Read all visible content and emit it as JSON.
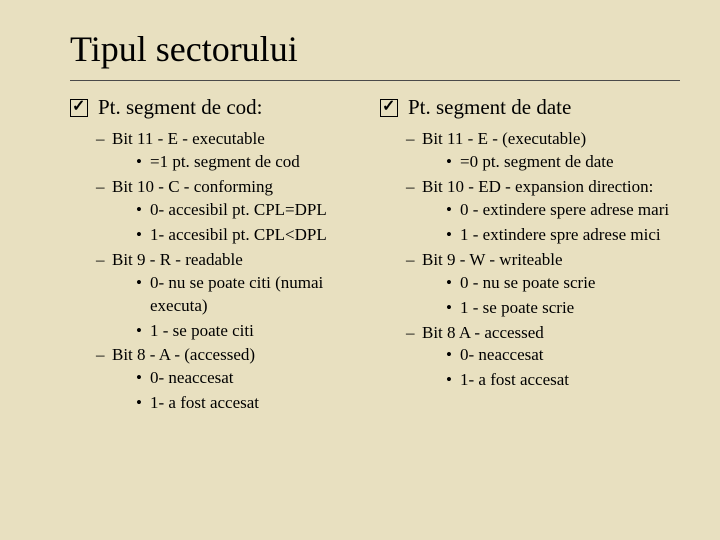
{
  "background_color": "#e8e0c0",
  "text_color": "#000000",
  "title": "Tipul sectorului",
  "title_fontsize": 36,
  "main_fontsize": 21,
  "sub_fontsize": 17,
  "rule_color": "#4a4a4a",
  "left": {
    "heading": "Pt. segment de cod:",
    "items": [
      {
        "label": "Bit 11 - E - executable",
        "children": [
          "=1 pt. segment de cod"
        ]
      },
      {
        "label": "Bit 10 - C - conforming",
        "children": [
          "0- accesibil pt. CPL=DPL",
          "1- accesibil pt. CPL<DPL"
        ]
      },
      {
        "label": "Bit 9 - R - readable",
        "children": [
          "0- nu se poate citi (numai executa)",
          "1 - se poate citi"
        ]
      },
      {
        "label": "Bit 8 - A - (accessed)",
        "children": [
          "0- neaccesat",
          "1- a fost accesat"
        ]
      }
    ]
  },
  "right": {
    "heading": "Pt. segment de date",
    "items": [
      {
        "label": "Bit 11 - E - (executable)",
        "children": [
          "=0 pt. segment de date"
        ]
      },
      {
        "label": "Bit 10 - ED - expansion direction:",
        "children": [
          "0 - extindere spere adrese mari",
          "1 - extindere spre adrese mici"
        ]
      },
      {
        "label": "Bit 9 - W - writeable",
        "children": [
          "0 - nu se poate scrie",
          "1 - se poate scrie"
        ]
      },
      {
        "label": "Bit 8 A - accessed",
        "children": [
          "0- neaccesat",
          "1- a fost accesat"
        ]
      }
    ]
  }
}
